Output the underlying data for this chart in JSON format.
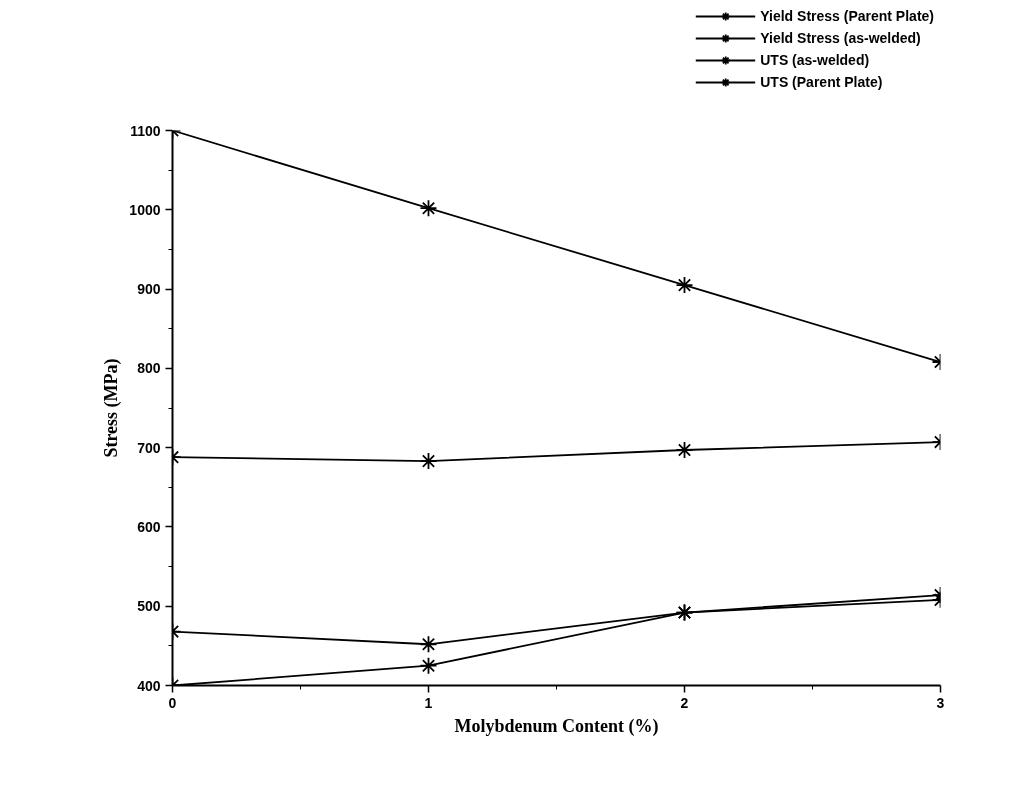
{
  "chart_data": {
    "type": "line",
    "xlabel": "Molybdenum Content (%)",
    "ylabel": "Stress (MPa)",
    "x": [
      0,
      1,
      2,
      3
    ],
    "series": [
      {
        "name": "Yield Stress (Parent Plate)",
        "color": "#000000",
        "values": [
          688,
          683,
          697,
          707
        ]
      },
      {
        "name": "Yield Stress (as-welded)",
        "color": "#000000",
        "values": [
          400,
          425,
          492,
          508
        ]
      },
      {
        "name": "UTS (as-welded)",
        "color": "#000000",
        "values": [
          468,
          452,
          492,
          514
        ]
      },
      {
        "name": "UTS (Parent Plate)",
        "color": "#000000",
        "values": [
          1100,
          1002,
          905,
          808
        ]
      }
    ],
    "xlim": [
      0,
      3
    ],
    "ylim": [
      400,
      1100
    ],
    "xticks": [
      0,
      1,
      2,
      3
    ],
    "yticks": [
      400,
      500,
      600,
      700,
      800,
      900,
      1000,
      1100
    ],
    "grid": false,
    "legend": "top right",
    "marker": "cross"
  }
}
